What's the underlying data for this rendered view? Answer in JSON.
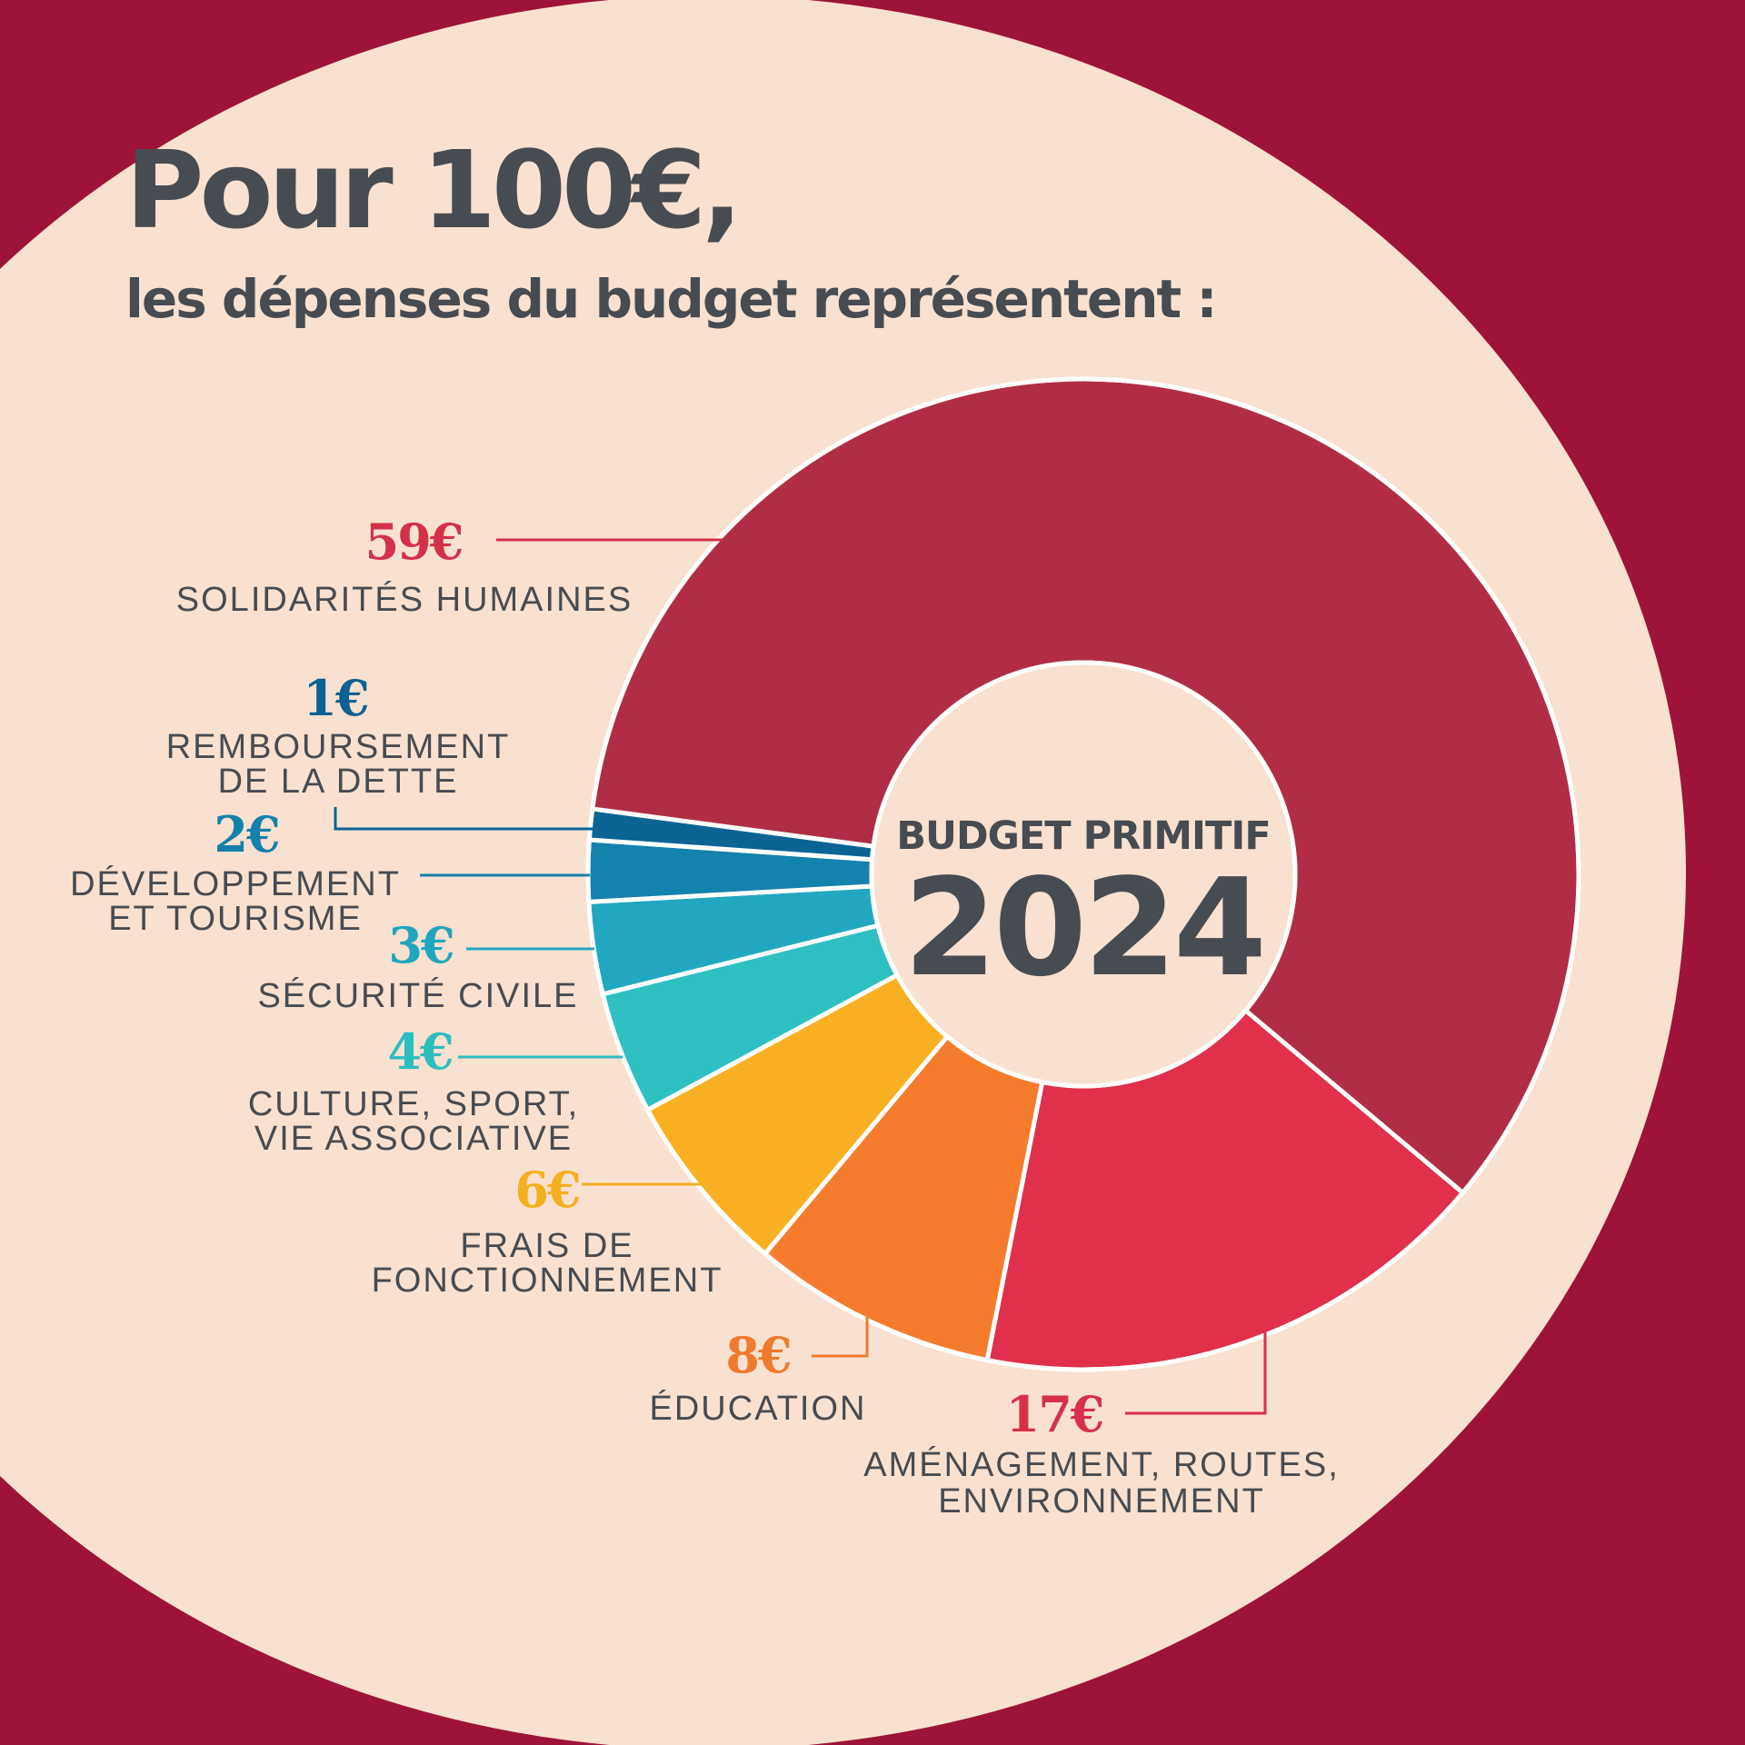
{
  "title": {
    "line1": "Pour 100€,",
    "line2": "les dépenses du budget représentent :"
  },
  "center": {
    "label": "BUDGET PRIMITIF",
    "year": "2024"
  },
  "colors": {
    "background": "#F8E1D0",
    "outer_band": "#9E1339",
    "text": "#474B52",
    "separator": "#FFFFFF"
  },
  "chart_data": {
    "type": "pie",
    "title": "Pour 100€, les dépenses du budget représentent :",
    "unit": "€",
    "total": 100,
    "start_angle_deg": 130,
    "direction": "clockwise",
    "categories": [
      {
        "value": 17,
        "display": "17€",
        "label_lines": [
          "AMÉNAGEMENT, ROUTES,",
          "ENVIRONNEMENT"
        ],
        "color": "#E0304C",
        "value_color": "#D9304A"
      },
      {
        "value": 8,
        "display": "8€",
        "label_lines": [
          "ÉDUCATION"
        ],
        "color": "#F57C2C",
        "value_color": "#F07A2E"
      },
      {
        "value": 6,
        "display": "6€",
        "label_lines": [
          "FRAIS DE",
          "FONCTIONNEMENT"
        ],
        "color": "#F9B123",
        "value_color": "#F5B020"
      },
      {
        "value": 4,
        "display": "4€",
        "label_lines": [
          "CULTURE, SPORT,",
          "VIE ASSOCIATIVE"
        ],
        "color": "#2EC0C2",
        "value_color": "#2BBDC0"
      },
      {
        "value": 3,
        "display": "3€",
        "label_lines": [
          "SÉCURITÉ CIVILE"
        ],
        "color": "#21A8C0",
        "value_color": "#1FA6BF"
      },
      {
        "value": 2,
        "display": "2€",
        "label_lines": [
          "DÉVELOPPEMENT",
          "ET TOURISME"
        ],
        "color": "#1382AD",
        "value_color": "#1480AC"
      },
      {
        "value": 1,
        "display": "1€",
        "label_lines": [
          "REMBOURSEMENT",
          "DE LA DETTE"
        ],
        "color": "#0B6494",
        "value_color": "#0A6293"
      },
      {
        "value": 59,
        "display": "59€",
        "label_lines": [
          "SOLIDARITÉS HUMAINES"
        ],
        "color": "#B12D46",
        "value_color": "#D53049"
      }
    ],
    "legend": "none"
  }
}
